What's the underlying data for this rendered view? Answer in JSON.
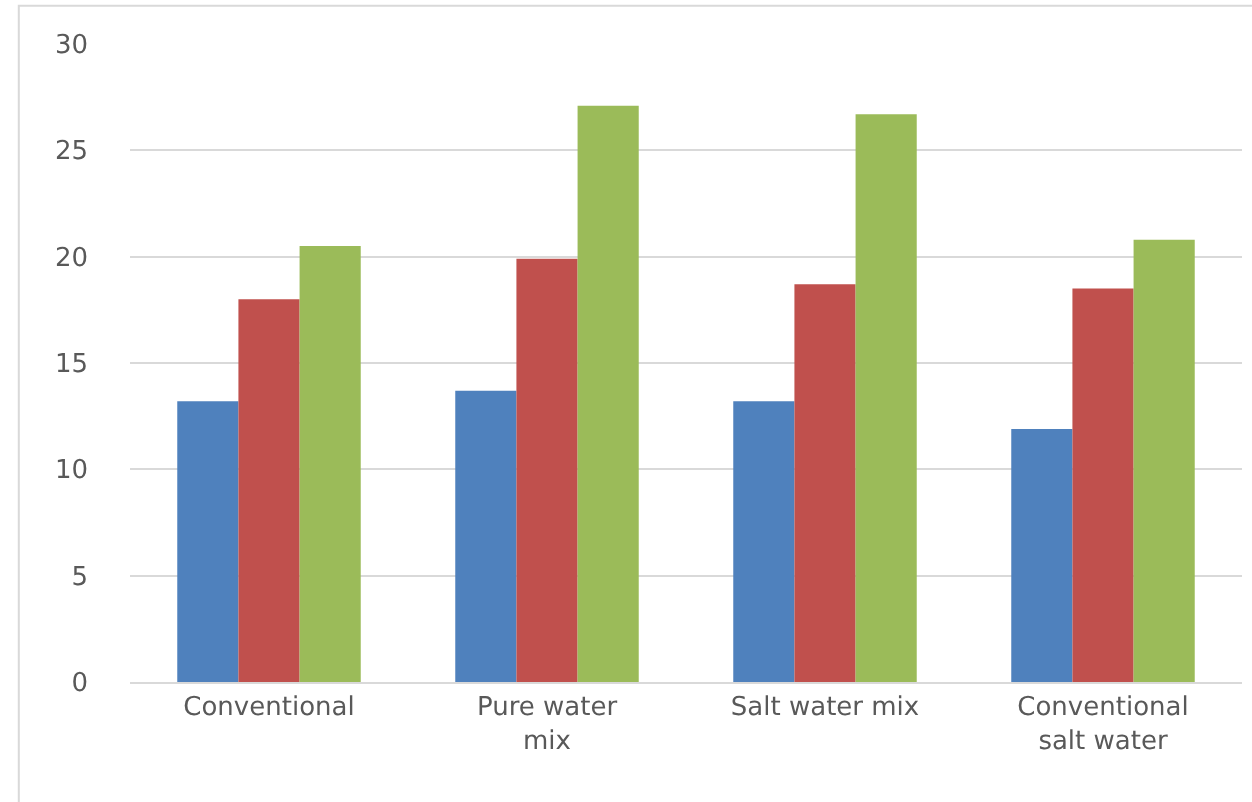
{
  "chart_data": {
    "type": "bar",
    "categories": [
      "Conventional",
      "Pure water\nmix",
      "Salt water mix",
      "Conventional\nsalt water"
    ],
    "series": [
      {
        "color": "#4f81bd",
        "values": [
          13.2,
          13.7,
          13.2,
          11.9
        ]
      },
      {
        "color": "#c0504d",
        "values": [
          18.0,
          19.9,
          18.7,
          18.5
        ]
      },
      {
        "color": "#9bbb59",
        "values": [
          20.5,
          27.1,
          26.7,
          20.8
        ]
      }
    ],
    "ylim": [
      0,
      30
    ],
    "yticks": [
      0,
      5,
      10,
      15,
      20,
      25,
      30
    ],
    "grid": "y"
  }
}
